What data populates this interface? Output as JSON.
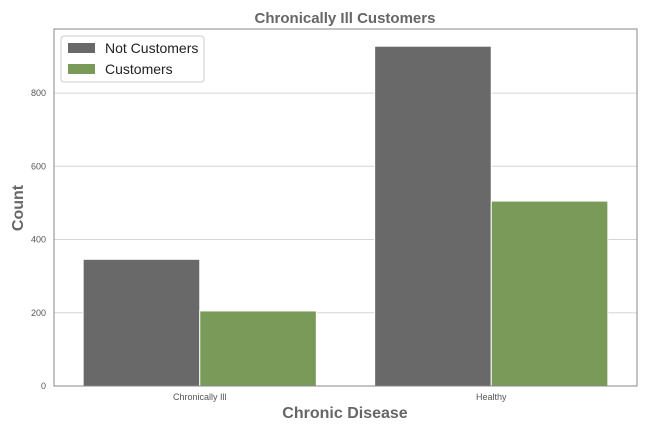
{
  "chart_data": {
    "type": "bar",
    "title": "Chronically Ill Customers",
    "xlabel": "Chronic Disease",
    "ylabel": "Count",
    "categories": [
      "Chronically Ill",
      "Healthy"
    ],
    "series": [
      {
        "name": "Not Customers",
        "values": [
          346,
          928
        ],
        "color": "#696969"
      },
      {
        "name": "Customers",
        "values": [
          205,
          505
        ],
        "color": "#7a9a5a"
      }
    ],
    "ylim": [
      0,
      975
    ],
    "yticks": [
      0,
      200,
      400,
      600,
      800
    ],
    "grid": "horizontal",
    "legend_position": "top-left"
  }
}
